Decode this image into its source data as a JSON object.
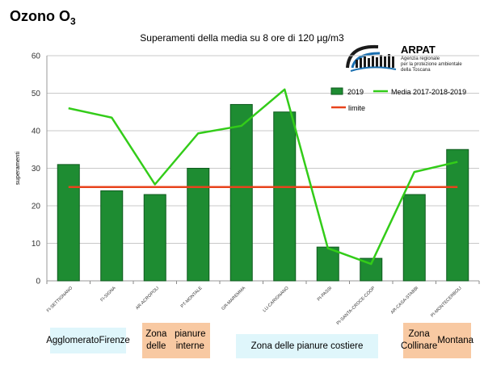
{
  "page_title": "Ozono O",
  "page_title_sub": "3",
  "logo": {
    "brand": "ARPAT",
    "subtitle_lines": [
      "Agenzia regionale",
      "per la protezione ambientale",
      "della Toscana"
    ]
  },
  "colors": {
    "bar": "#1e8c32",
    "bar_stroke": "#0f5a1e",
    "mean_line": "#33cc19",
    "limit_line": "#e8431c",
    "cyan_band": "#dff6fb",
    "peach_band": "#f8c9a2"
  },
  "chart_data": {
    "type": "bar",
    "title": "Superamenti della media su 8 ore di 120 µg/m3",
    "ylabel": "superamenti",
    "ylim": [
      0,
      60
    ],
    "yticks": [
      0,
      10,
      20,
      30,
      40,
      50,
      60
    ],
    "grid": true,
    "legend_position": "top-right",
    "categories": [
      "FI-SETTIGNANO",
      "FI-SIGNA",
      "AR-ACROPOLI",
      "PT-MONTALE",
      "GR-MAREMMA",
      "LU-CARIGNANO",
      "PI-PASSI",
      "PI-SANTA-CROCE-COOP",
      "AR-CASA-STABBI",
      "PI-MONTECERBOLI"
    ],
    "series": [
      {
        "name": "2019",
        "kind": "bar",
        "values": [
          31,
          24,
          23,
          30,
          47,
          45,
          9,
          6,
          23,
          35
        ]
      },
      {
        "name": "Media 2017-2018-2019",
        "kind": "line",
        "values": [
          46,
          43.5,
          25.7,
          39.3,
          41.3,
          51,
          8.7,
          4.5,
          29,
          31.7
        ]
      },
      {
        "name": "limite",
        "kind": "line",
        "values": [
          25,
          25,
          25,
          25,
          25,
          25,
          25,
          25,
          25,
          25
        ]
      }
    ],
    "zones": [
      {
        "label": "Agglomerato Firenze",
        "lines": [
          "Agglomerato",
          "Firenze"
        ],
        "style": "cyan"
      },
      {
        "label": "Zona delle pianure interne",
        "lines": [
          "Zona delle",
          "pianure interne"
        ],
        "style": "peach"
      },
      {
        "label": "Zona delle pianure costiere",
        "lines": [
          "Zona delle pianure costiere"
        ],
        "style": "cyan"
      },
      {
        "label": "Zona Collinare Montana",
        "lines": [
          "Zona Collinare",
          "Montana"
        ],
        "style": "peach"
      }
    ]
  }
}
